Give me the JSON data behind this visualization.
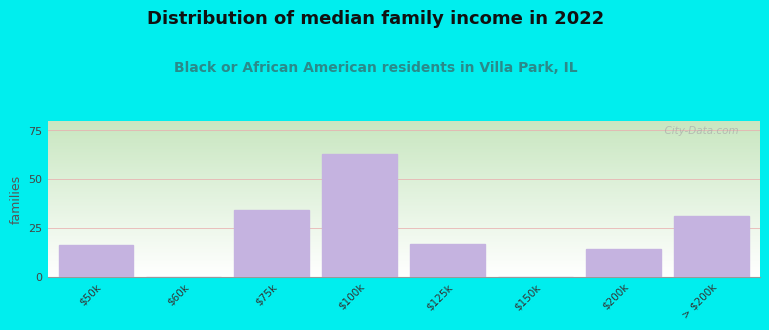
{
  "title": "Distribution of median family income in 2022",
  "subtitle": "Black or African American residents in Villa Park, IL",
  "title_fontsize": 13,
  "subtitle_fontsize": 10,
  "ylabel": "families",
  "ylabel_fontsize": 9,
  "bg_color": "#00EEEE",
  "bar_color": "#c5b3e0",
  "categories": [
    "$50k",
    "$60k",
    "$75k",
    "$100k",
    "$125k",
    "$150k",
    "$200k",
    "> $200k"
  ],
  "values": [
    16,
    0,
    34,
    63,
    17,
    0,
    14,
    31
  ],
  "ylim": [
    0,
    80
  ],
  "yticks": [
    0,
    25,
    50,
    75
  ],
  "grid_color": "#e8b0b0",
  "watermark": "  City-Data.com"
}
